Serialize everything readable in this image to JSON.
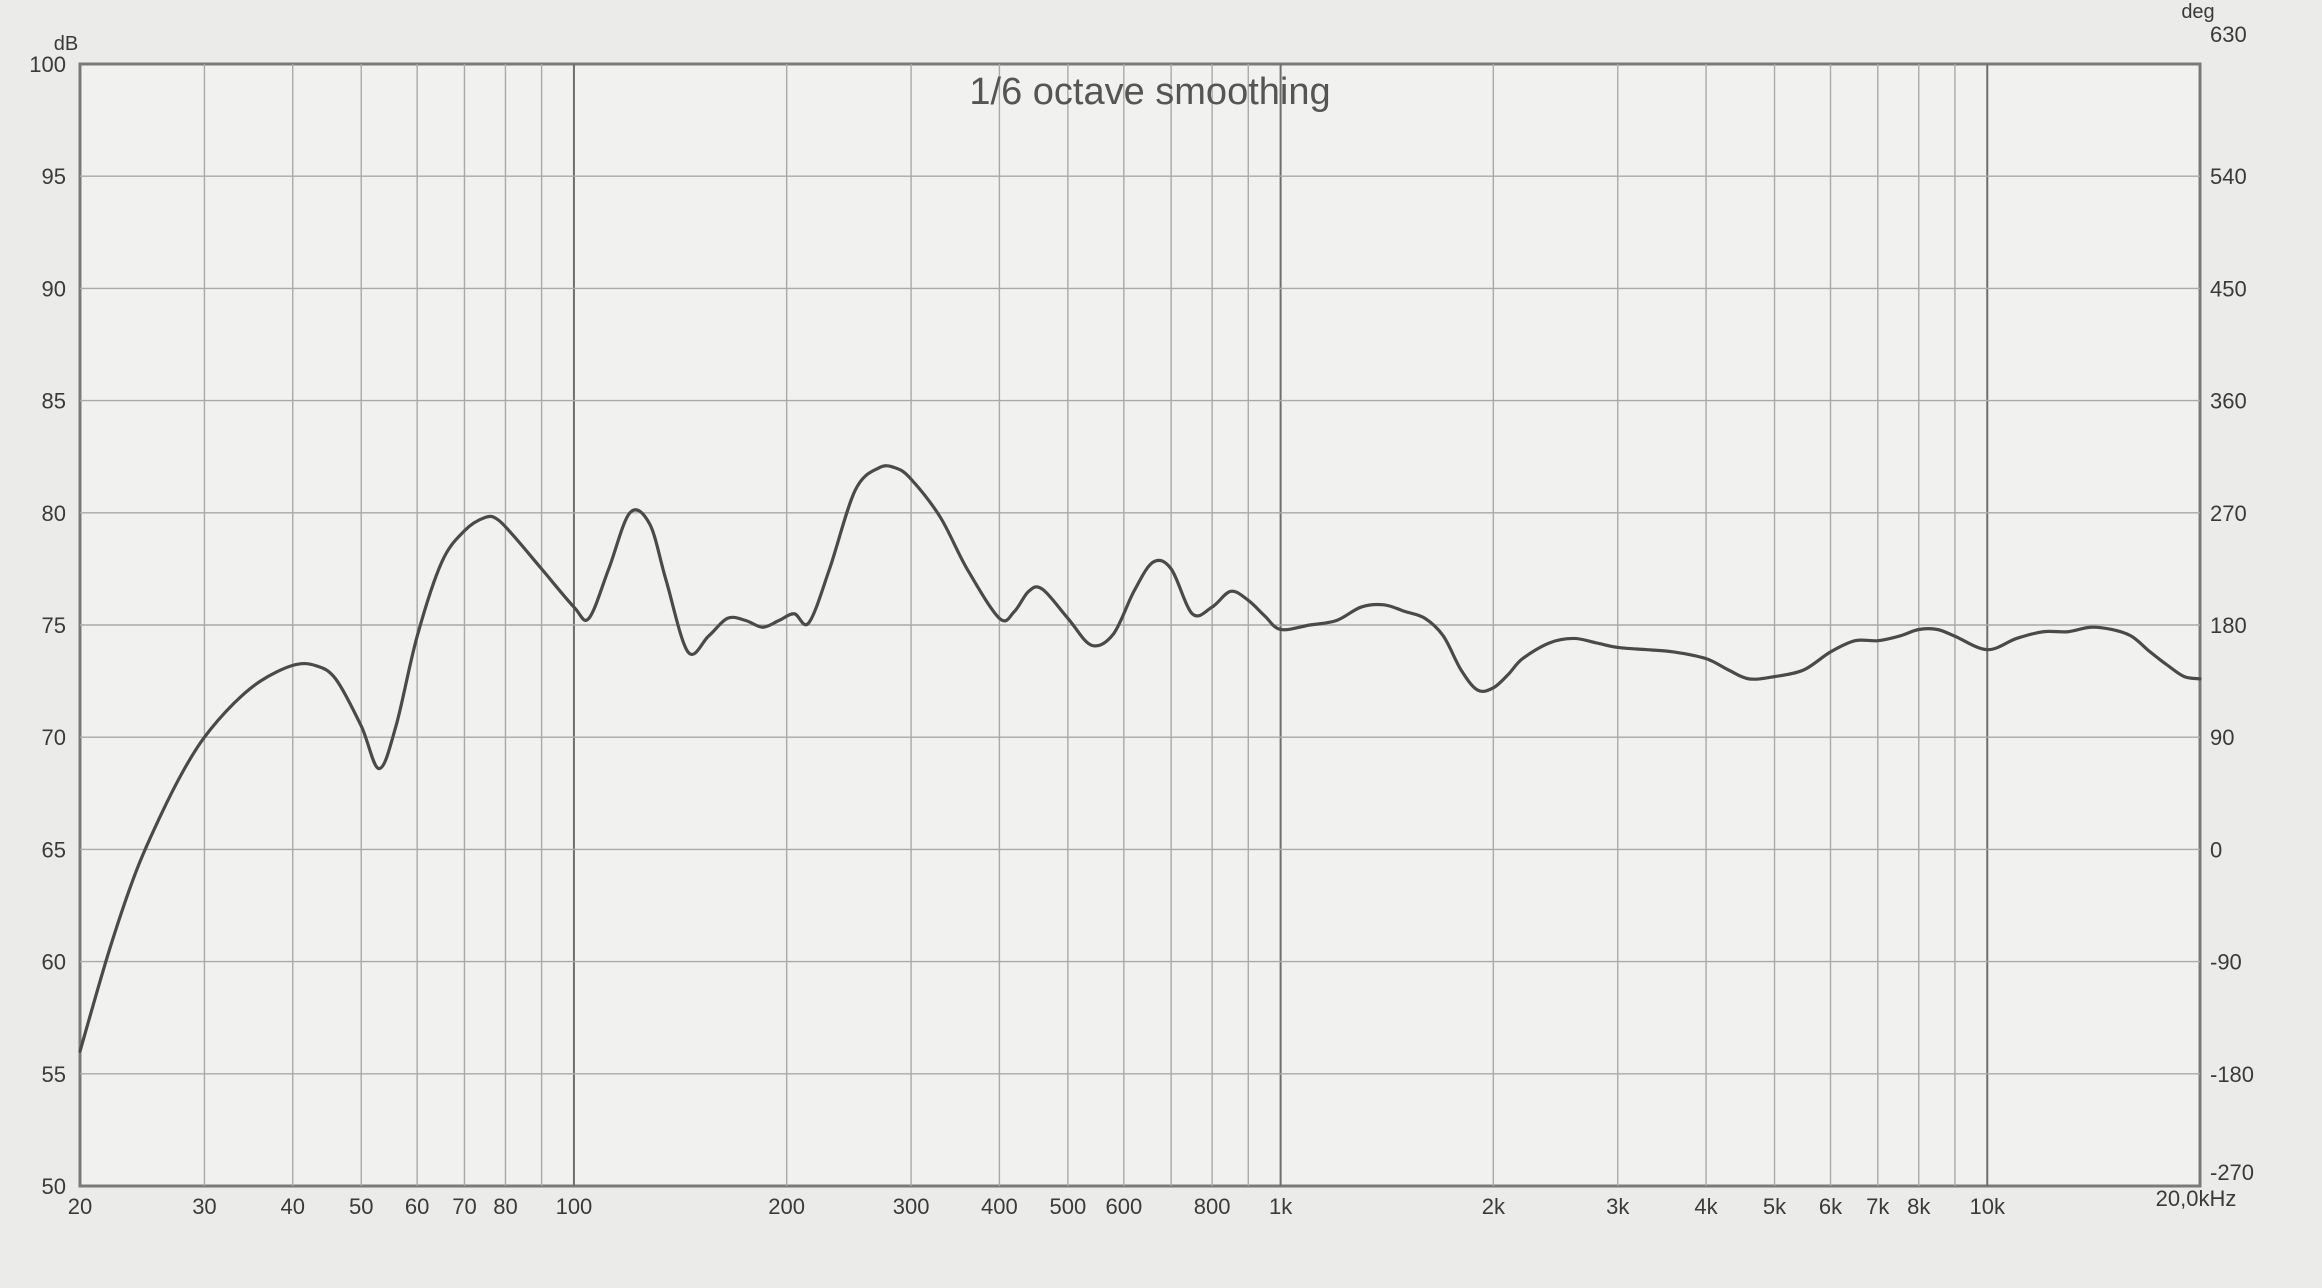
{
  "chart_data": {
    "type": "line",
    "title": "1/6 octave smoothing",
    "x_unit_label": "20,0kHz",
    "y_left_unit": "dB",
    "y_right_unit": "deg",
    "x_scale": "log",
    "xlim": [
      20,
      20000
    ],
    "ylim": [
      50,
      100
    ],
    "y_right_lim": [
      -270,
      630
    ],
    "grid": true,
    "x_ticks": [
      {
        "value": 20,
        "label": "20"
      },
      {
        "value": 30,
        "label": "30"
      },
      {
        "value": 40,
        "label": "40"
      },
      {
        "value": 50,
        "label": "50"
      },
      {
        "value": 60,
        "label": "60"
      },
      {
        "value": 70,
        "label": "70"
      },
      {
        "value": 80,
        "label": "80"
      },
      {
        "value": 100,
        "label": "100"
      },
      {
        "value": 200,
        "label": "200"
      },
      {
        "value": 300,
        "label": "300"
      },
      {
        "value": 400,
        "label": "400"
      },
      {
        "value": 500,
        "label": "500"
      },
      {
        "value": 600,
        "label": "600"
      },
      {
        "value": 800,
        "label": "800"
      },
      {
        "value": 1000,
        "label": "1k"
      },
      {
        "value": 2000,
        "label": "2k"
      },
      {
        "value": 3000,
        "label": "3k"
      },
      {
        "value": 4000,
        "label": "4k"
      },
      {
        "value": 5000,
        "label": "5k"
      },
      {
        "value": 6000,
        "label": "6k"
      },
      {
        "value": 7000,
        "label": "7k"
      },
      {
        "value": 8000,
        "label": "8k"
      },
      {
        "value": 10000,
        "label": "10k"
      }
    ],
    "x_gridlines": [
      30,
      40,
      50,
      60,
      70,
      80,
      90,
      100,
      200,
      300,
      400,
      500,
      600,
      700,
      800,
      900,
      1000,
      2000,
      3000,
      4000,
      5000,
      6000,
      7000,
      8000,
      9000,
      10000
    ],
    "y_left_ticks": [
      "100",
      "95",
      "90",
      "85",
      "80",
      "75",
      "70",
      "65",
      "60",
      "55",
      "50"
    ],
    "y_right_ticks": [
      "630",
      "540",
      "450",
      "360",
      "270",
      "180",
      "90",
      "0",
      "-90",
      "-180",
      "-270"
    ],
    "series": [
      {
        "color": "#4a4a4a",
        "x": [
          20,
          22,
          24,
          26,
          28,
          30,
          33,
          36,
          40,
          43,
          46,
          50,
          53,
          56,
          60,
          65,
          70,
          75,
          78,
          82,
          90,
          100,
          105,
          112,
          120,
          128,
          135,
          145,
          155,
          165,
          175,
          185,
          195,
          205,
          215,
          230,
          250,
          270,
          285,
          300,
          330,
          360,
          400,
          420,
          440,
          460,
          500,
          540,
          580,
          620,
          660,
          700,
          750,
          800,
          850,
          900,
          950,
          1000,
          1100,
          1200,
          1300,
          1400,
          1500,
          1600,
          1700,
          1800,
          1900,
          2000,
          2100,
          2200,
          2400,
          2600,
          2800,
          3000,
          3300,
          3600,
          4000,
          4300,
          4600,
          5000,
          5500,
          6000,
          6500,
          7000,
          7500,
          8000,
          8500,
          9000,
          10000,
          11000,
          12000,
          13000,
          14000,
          15000,
          16000,
          17000,
          18000,
          19000,
          20000
        ],
        "y": [
          56.0,
          60.5,
          64.0,
          66.5,
          68.5,
          70.0,
          71.5,
          72.5,
          73.2,
          73.2,
          72.6,
          70.5,
          68.6,
          70.5,
          74.5,
          77.8,
          79.2,
          79.8,
          79.7,
          79.0,
          77.5,
          75.8,
          75.3,
          77.5,
          80.0,
          79.5,
          77.0,
          73.8,
          74.5,
          75.3,
          75.2,
          74.9,
          75.2,
          75.5,
          75.1,
          77.5,
          81.0,
          82.0,
          82.0,
          81.5,
          79.8,
          77.5,
          75.3,
          75.6,
          76.5,
          76.6,
          75.3,
          74.1,
          74.6,
          76.5,
          77.8,
          77.5,
          75.5,
          75.8,
          76.5,
          76.1,
          75.4,
          74.8,
          75.0,
          75.2,
          75.8,
          75.9,
          75.6,
          75.3,
          74.5,
          73.0,
          72.1,
          72.2,
          72.8,
          73.5,
          74.2,
          74.4,
          74.2,
          74.0,
          73.9,
          73.8,
          73.5,
          73.0,
          72.6,
          72.7,
          73.0,
          73.8,
          74.3,
          74.3,
          74.5,
          74.8,
          74.8,
          74.5,
          73.9,
          74.4,
          74.7,
          74.7,
          74.9,
          74.8,
          74.5,
          73.8,
          73.2,
          72.7,
          72.6
        ]
      }
    ]
  }
}
